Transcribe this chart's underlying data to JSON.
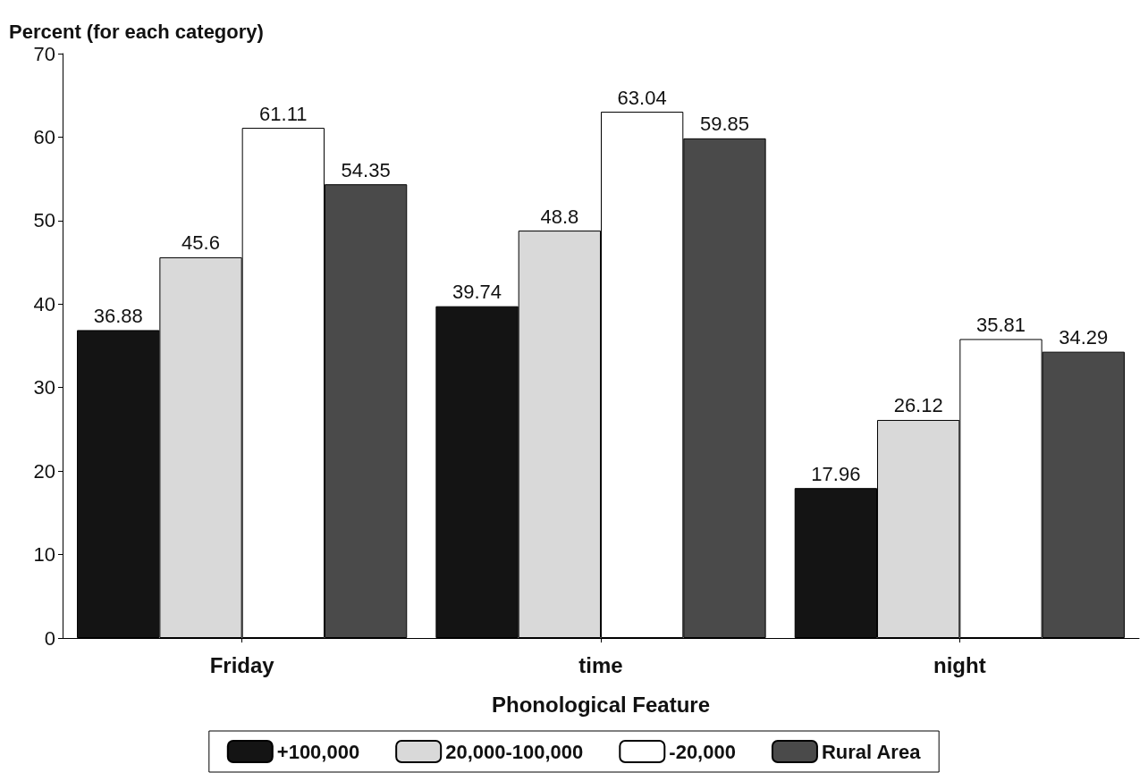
{
  "chart_data": {
    "type": "bar",
    "xlabel": "Phonological Feature",
    "ylabel": "Percent (for each category)",
    "categories": [
      "Friday",
      "time",
      "night"
    ],
    "series": [
      {
        "name": "+100,000",
        "color": "#141414",
        "values": [
          36.88,
          39.74,
          17.96
        ]
      },
      {
        "name": "20,000-100,000",
        "color": "#d9d9d9",
        "values": [
          45.6,
          48.8,
          26.12
        ]
      },
      {
        "name": "-20,000",
        "color": "#ffffff",
        "values": [
          61.11,
          63.04,
          35.81
        ]
      },
      {
        "name": "Rural Area",
        "color": "#4a4a4a",
        "values": [
          54.35,
          59.85,
          34.29
        ]
      }
    ],
    "ylim": [
      0,
      70
    ],
    "yticks": [
      0,
      10,
      20,
      30,
      40,
      50,
      60,
      70
    ],
    "data_labels": true,
    "grid": false,
    "legend": "bottom"
  }
}
